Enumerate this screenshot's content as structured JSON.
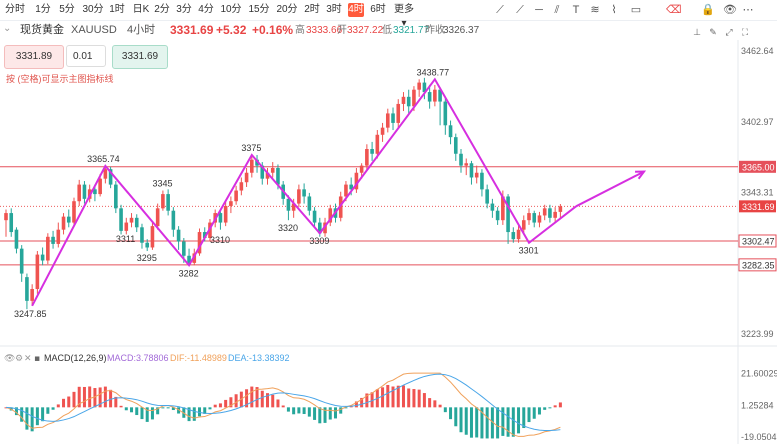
{
  "toolbar": {
    "timeframes": [
      "分时",
      "1分",
      "5分",
      "30分",
      "1时",
      "日K",
      "2分",
      "3分",
      "4分",
      "10分",
      "15分",
      "20分",
      "2时",
      "3时",
      "4时",
      "6时",
      "更多"
    ],
    "active": "4时",
    "more_arrow": "▾"
  },
  "info": {
    "symbol": "现货黄金",
    "code": "XAUUSD",
    "interval": "4小时",
    "price": "3331.69",
    "change": "+5.32",
    "change_pct": "+0.16%",
    "high_label": "高",
    "high": "3333.66",
    "open_label": "开",
    "open": "3327.22",
    "low_label": "低",
    "low": "3321.77",
    "prev_label": "昨收",
    "prev": "3326.37"
  },
  "order": {
    "bid": "3331.89",
    "lots": "0.01",
    "ask": "3331.69"
  },
  "hint": "按 (空格)可显示主图指标线",
  "macd": {
    "title": "MACD(12,26,9)",
    "macd_label": "MACD:",
    "macd_value": "3.78806",
    "dif_label": "DIF:",
    "dif_value": "-11.48989",
    "dea_label": "DEA:",
    "dea_value": "-13.38392"
  },
  "colors": {
    "up": "#ef5350",
    "down": "#26a69a",
    "zigzag": "#d62fe0",
    "hline": "#e5505b",
    "dif": "#f0a15b",
    "dea": "#4aa6e8",
    "price_tag": "#e84444"
  },
  "chart_data": {
    "type": "candlestick",
    "y_axis_ticks": [
      "3462.64",
      "3402.97",
      "3343.31",
      "3282.35",
      "3223.99"
    ],
    "ylim": [
      3219,
      3466
    ],
    "horizontal_levels": [
      {
        "value": 3365.0,
        "label": "3365.00",
        "style": "filled"
      },
      {
        "value": 3302.47,
        "label": "3302.47",
        "style": "outline"
      },
      {
        "value": 3282.35,
        "label": "3282.35",
        "style": "outline"
      }
    ],
    "current_price": {
      "value": 3331.69,
      "label": "3331.69"
    },
    "candles": [
      [
        3320,
        3326,
        3306,
        3329
      ],
      [
        3326,
        3310,
        3306,
        3330
      ],
      [
        3312,
        3296,
        3292,
        3314
      ],
      [
        3296,
        3275,
        3268,
        3299
      ],
      [
        3272,
        3252,
        3245,
        3275
      ],
      [
        3252,
        3262,
        3247.85,
        3266
      ],
      [
        3262,
        3291,
        3258,
        3294
      ],
      [
        3291,
        3286,
        3282,
        3297
      ],
      [
        3286,
        3306,
        3283,
        3309
      ],
      [
        3306,
        3300,
        3296,
        3311
      ],
      [
        3300,
        3312,
        3297,
        3318
      ],
      [
        3312,
        3323,
        3308,
        3326
      ],
      [
        3323,
        3318,
        3314,
        3329
      ],
      [
        3318,
        3336,
        3316,
        3339
      ],
      [
        3336,
        3350,
        3332,
        3354
      ],
      [
        3350,
        3338,
        3334,
        3353
      ],
      [
        3338,
        3346,
        3335,
        3350
      ],
      [
        3346,
        3342,
        3336,
        3350
      ],
      [
        3342,
        3355,
        3340,
        3359
      ],
      [
        3355,
        3363,
        3351,
        3365.74
      ],
      [
        3363,
        3350,
        3347,
        3365
      ],
      [
        3350,
        3330,
        3326,
        3353
      ],
      [
        3330,
        3311,
        3308,
        3333
      ],
      [
        3311,
        3318,
        3308,
        3322
      ],
      [
        3318,
        3322,
        3314,
        3326
      ],
      [
        3322,
        3314,
        3310,
        3325
      ],
      [
        3314,
        3301,
        3296,
        3317
      ],
      [
        3301,
        3297,
        3294,
        3304
      ],
      [
        3297,
        3315,
        3295,
        3319
      ],
      [
        3315,
        3330,
        3312,
        3334
      ],
      [
        3330,
        3342,
        3328,
        3345
      ],
      [
        3342,
        3328,
        3324,
        3346
      ],
      [
        3328,
        3312,
        3306,
        3331
      ],
      [
        3312,
        3302,
        3295,
        3315
      ],
      [
        3302,
        3290,
        3284,
        3305
      ],
      [
        3290,
        3284,
        3282,
        3296
      ],
      [
        3284,
        3292,
        3282,
        3296
      ],
      [
        3292,
        3310,
        3290,
        3313
      ],
      [
        3310,
        3305,
        3302,
        3314
      ],
      [
        3305,
        3318,
        3302,
        3321
      ],
      [
        3318,
        3326,
        3314,
        3329
      ],
      [
        3326,
        3318,
        3312,
        3329
      ],
      [
        3318,
        3332,
        3315,
        3336
      ],
      [
        3332,
        3336,
        3326,
        3340
      ],
      [
        3336,
        3345,
        3333,
        3349
      ],
      [
        3345,
        3352,
        3341,
        3356
      ],
      [
        3352,
        3360,
        3348,
        3364
      ],
      [
        3360,
        3371,
        3356,
        3375
      ],
      [
        3371,
        3366,
        3360,
        3375
      ],
      [
        3366,
        3355,
        3350,
        3369
      ],
      [
        3355,
        3360,
        3350,
        3364
      ],
      [
        3360,
        3364,
        3356,
        3369
      ],
      [
        3364,
        3350,
        3346,
        3367
      ],
      [
        3350,
        3338,
        3333,
        3353
      ],
      [
        3338,
        3328,
        3320,
        3341
      ],
      [
        3328,
        3334,
        3322,
        3338
      ],
      [
        3334,
        3346,
        3331,
        3350
      ],
      [
        3346,
        3340,
        3334,
        3351
      ],
      [
        3340,
        3328,
        3324,
        3343
      ],
      [
        3328,
        3318,
        3314,
        3331
      ],
      [
        3318,
        3309,
        3306,
        3322
      ],
      [
        3309,
        3318,
        3306,
        3322
      ],
      [
        3318,
        3330,
        3315,
        3333
      ],
      [
        3330,
        3322,
        3318,
        3334
      ],
      [
        3322,
        3340,
        3319,
        3344
      ],
      [
        3340,
        3350,
        3336,
        3353
      ],
      [
        3350,
        3346,
        3341,
        3356
      ],
      [
        3346,
        3360,
        3343,
        3364
      ],
      [
        3360,
        3366,
        3355,
        3368
      ],
      [
        3366,
        3380,
        3362,
        3384
      ],
      [
        3380,
        3376,
        3370,
        3386
      ],
      [
        3376,
        3392,
        3372,
        3396
      ],
      [
        3392,
        3398,
        3386,
        3402
      ],
      [
        3398,
        3410,
        3394,
        3414
      ],
      [
        3410,
        3402,
        3396,
        3415
      ],
      [
        3402,
        3418,
        3398,
        3422
      ],
      [
        3418,
        3424,
        3412,
        3428
      ],
      [
        3424,
        3416,
        3410,
        3430
      ],
      [
        3416,
        3430,
        3412,
        3433
      ],
      [
        3430,
        3436,
        3424,
        3438.77
      ],
      [
        3436,
        3428,
        3422,
        3440
      ],
      [
        3428,
        3420,
        3414,
        3434
      ],
      [
        3420,
        3430,
        3416,
        3434
      ],
      [
        3430,
        3420,
        3400,
        3432
      ],
      [
        3420,
        3400,
        3392,
        3424
      ],
      [
        3400,
        3390,
        3384,
        3404
      ],
      [
        3390,
        3376,
        3370,
        3393
      ],
      [
        3376,
        3366,
        3360,
        3380
      ],
      [
        3366,
        3368,
        3358,
        3372
      ],
      [
        3368,
        3356,
        3350,
        3370
      ],
      [
        3356,
        3360,
        3351,
        3366
      ],
      [
        3360,
        3346,
        3340,
        3363
      ],
      [
        3346,
        3334,
        3330,
        3350
      ],
      [
        3334,
        3328,
        3322,
        3338
      ],
      [
        3328,
        3320,
        3316,
        3331
      ],
      [
        3320,
        3340,
        3316,
        3345
      ],
      [
        3340,
        3310,
        3300,
        3342
      ],
      [
        3310,
        3304,
        3301,
        3314
      ],
      [
        3304,
        3312,
        3301,
        3316
      ],
      [
        3312,
        3320,
        3308,
        3324
      ],
      [
        3320,
        3326,
        3316,
        3330
      ],
      [
        3326,
        3318,
        3314,
        3328
      ],
      [
        3318,
        3324,
        3314,
        3327
      ],
      [
        3324,
        3330,
        3320,
        3333
      ],
      [
        3330,
        3322,
        3318,
        3333
      ],
      [
        3322,
        3327,
        3318,
        3331
      ],
      [
        3327,
        3331.69,
        3321.77,
        3333.66
      ]
    ],
    "swing_labels": [
      {
        "index": 5,
        "value": 3247.85,
        "label": "3247.85",
        "pos": "below"
      },
      {
        "index": 19,
        "value": 3365.74,
        "label": "3365.74",
        "pos": "above"
      },
      {
        "index": 23,
        "value": 3311,
        "label": "3311",
        "pos": "below"
      },
      {
        "index": 30,
        "value": 3345,
        "label": "3345",
        "pos": "above"
      },
      {
        "index": 27,
        "value": 3295,
        "label": "3295",
        "pos": "below"
      },
      {
        "index": 35,
        "value": 3282,
        "label": "3282",
        "pos": "below"
      },
      {
        "index": 41,
        "value": 3310,
        "label": "3310",
        "pos": "below"
      },
      {
        "index": 47,
        "value": 3375,
        "label": "3375",
        "pos": "above"
      },
      {
        "index": 54,
        "value": 3320,
        "label": "3320",
        "pos": "below"
      },
      {
        "index": 60,
        "value": 3309,
        "label": "3309",
        "pos": "below"
      },
      {
        "index": 82,
        "value": 3438.77,
        "label": "3438.77",
        "pos": "above"
      },
      {
        "index": 100,
        "value": 3301,
        "label": "3301",
        "pos": "below"
      }
    ],
    "zigzag": [
      {
        "i": 5,
        "v": 3247.85
      },
      {
        "i": 19,
        "v": 3365.74
      },
      {
        "i": 35,
        "v": 3282
      },
      {
        "i": 47,
        "v": 3375
      },
      {
        "i": 60,
        "v": 3309
      },
      {
        "i": 82,
        "v": 3438.77
      },
      {
        "i": 100,
        "v": 3301
      },
      {
        "i": 109,
        "v": 3331.69
      }
    ],
    "projection": {
      "from": {
        "i": 109,
        "v": 3331.69
      },
      "to": {
        "i": 122,
        "v": 3361
      }
    },
    "macd": {
      "ticks": [
        "21.60029",
        "1.25284",
        "-19.05047"
      ],
      "ylim": [
        -21,
        24
      ]
    }
  }
}
